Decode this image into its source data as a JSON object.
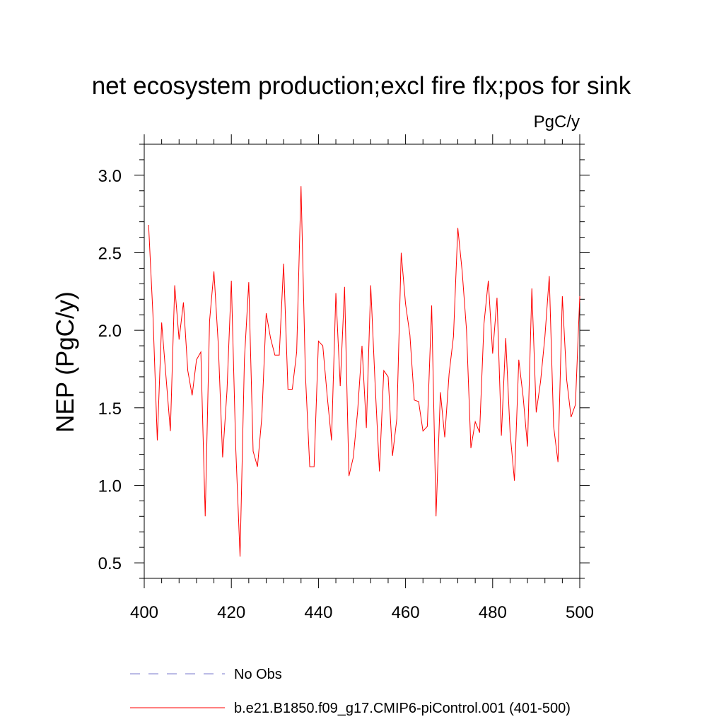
{
  "chart_data": {
    "type": "line",
    "title": "net ecosystem production;excl fire flx;pos for sink",
    "units_label": "PgC/y",
    "ylabel": "NEP  (PgC/y)",
    "xlabel": "",
    "xlim": [
      400,
      500
    ],
    "ylim": [
      0.4,
      3.2
    ],
    "x_ticks": [
      "400",
      "420",
      "440",
      "460",
      "480",
      "500"
    ],
    "y_ticks": [
      "0.5",
      "1.0",
      "1.5",
      "2.0",
      "2.5",
      "3.0"
    ],
    "grid": false,
    "legend_position": "bottom",
    "series": [
      {
        "name": "No Obs",
        "color": "#7777cc",
        "style": "dashed",
        "x": [],
        "values": []
      },
      {
        "name": "b.e21.B1850.f09_g17.CMIP6-piControl.001 (401-500)",
        "color": "#ff0000",
        "style": "solid",
        "x": [
          401,
          402,
          403,
          404,
          405,
          406,
          407,
          408,
          409,
          410,
          411,
          412,
          413,
          414,
          415,
          416,
          417,
          418,
          419,
          420,
          421,
          422,
          423,
          424,
          425,
          426,
          427,
          428,
          429,
          430,
          431,
          432,
          433,
          434,
          435,
          436,
          437,
          438,
          439,
          440,
          441,
          442,
          443,
          444,
          445,
          446,
          447,
          448,
          449,
          450,
          451,
          452,
          453,
          454,
          455,
          456,
          457,
          458,
          459,
          460,
          461,
          462,
          463,
          464,
          465,
          466,
          467,
          468,
          469,
          470,
          471,
          472,
          473,
          474,
          475,
          476,
          477,
          478,
          479,
          480,
          481,
          482,
          483,
          484,
          485,
          486,
          487,
          488,
          489,
          490,
          491,
          492,
          493,
          494,
          495,
          496,
          497,
          498,
          499,
          500
        ],
        "values": [
          2.68,
          2.1,
          1.29,
          2.05,
          1.7,
          1.35,
          2.29,
          1.94,
          2.18,
          1.74,
          1.58,
          1.81,
          1.86,
          0.8,
          2.06,
          2.38,
          1.91,
          1.18,
          1.61,
          2.32,
          1.25,
          0.54,
          1.81,
          2.31,
          1.22,
          1.12,
          1.44,
          2.11,
          1.95,
          1.84,
          1.84,
          2.43,
          1.62,
          1.62,
          1.86,
          2.93,
          1.72,
          1.12,
          1.12,
          1.93,
          1.9,
          1.58,
          1.29,
          2.24,
          1.64,
          2.28,
          1.06,
          1.18,
          1.48,
          1.9,
          1.37,
          2.29,
          1.66,
          1.09,
          1.74,
          1.7,
          1.19,
          1.43,
          2.5,
          2.17,
          1.97,
          1.55,
          1.54,
          1.35,
          1.38,
          2.16,
          0.8,
          1.6,
          1.31,
          1.72,
          1.96,
          2.66,
          2.38,
          2.0,
          1.24,
          1.41,
          1.34,
          2.04,
          2.32,
          1.85,
          2.21,
          1.32,
          1.95,
          1.34,
          1.03,
          1.81,
          1.57,
          1.25,
          2.27,
          1.47,
          1.67,
          1.96,
          2.35,
          1.38,
          1.15,
          2.22,
          1.68,
          1.44,
          1.52,
          2.22
        ]
      }
    ]
  }
}
